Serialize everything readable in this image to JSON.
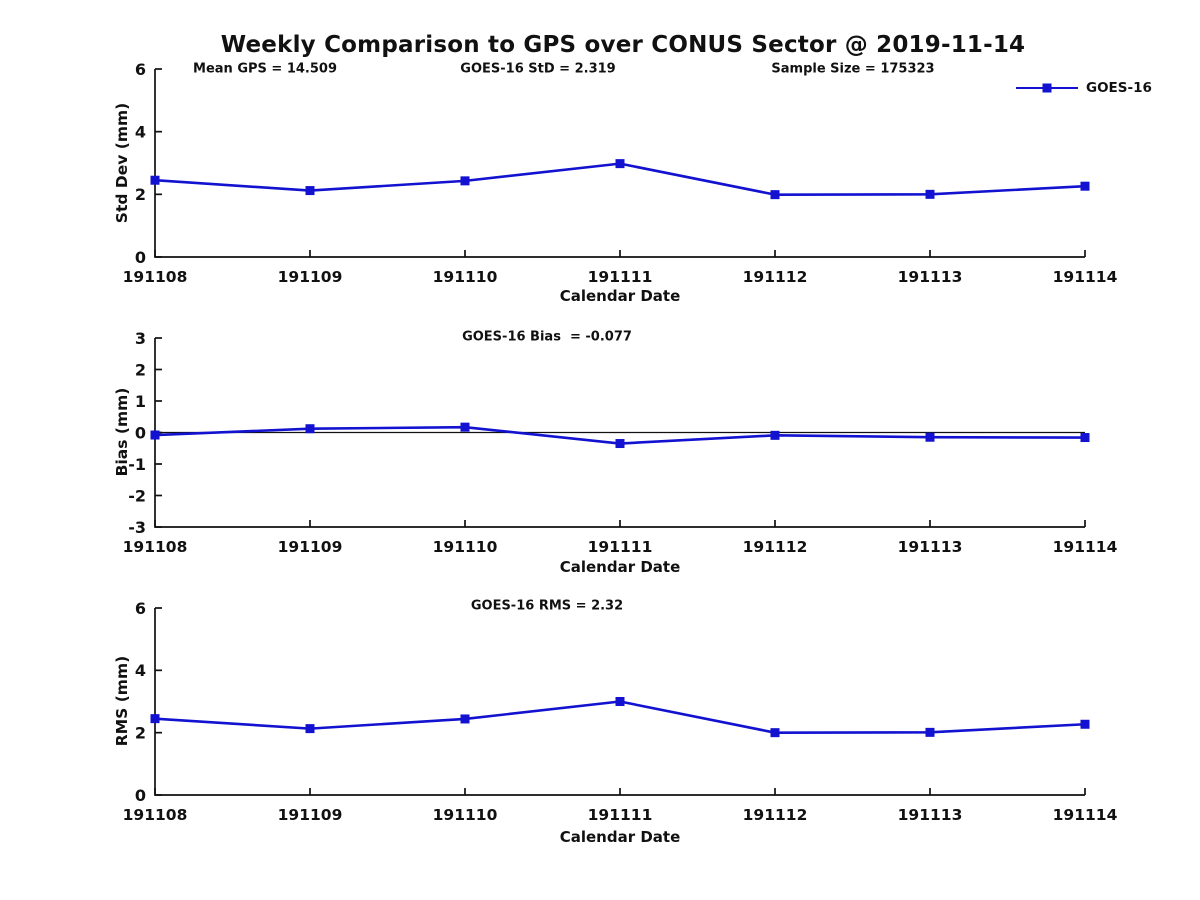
{
  "title": "Weekly Comparison to GPS over CONUS Sector @ 2019-11-14",
  "legend": {
    "label": "GOES-16",
    "color": "#1212d0",
    "position": "top-right"
  },
  "axis_color": "#111111",
  "chart_data": [
    {
      "type": "line",
      "ylabel": "Std Dev (mm)",
      "xlabel": "Calendar Date",
      "categories": [
        "191108",
        "191109",
        "191110",
        "191111",
        "191112",
        "191113",
        "191114"
      ],
      "series": [
        {
          "name": "GOES-16",
          "marker": "square",
          "values": [
            2.45,
            2.12,
            2.43,
            2.98,
            1.99,
            2.0,
            2.26
          ]
        }
      ],
      "ylim": [
        0,
        6
      ],
      "yticks": [
        0,
        2,
        4,
        6
      ],
      "grid": false,
      "zero_line": false,
      "annotations": [
        "Mean GPS = 14.509",
        "GOES-16 StD = 2.319",
        "Sample Size = 175323"
      ]
    },
    {
      "type": "line",
      "ylabel": "Bias (mm)",
      "xlabel": "Calendar Date",
      "categories": [
        "191108",
        "191109",
        "191110",
        "191111",
        "191112",
        "191113",
        "191114"
      ],
      "series": [
        {
          "name": "GOES-16",
          "marker": "square",
          "values": [
            -0.08,
            0.12,
            0.17,
            -0.35,
            -0.09,
            -0.15,
            -0.16
          ]
        }
      ],
      "ylim": [
        -3,
        3
      ],
      "yticks": [
        -3,
        -2,
        -1,
        0,
        1,
        2,
        3
      ],
      "grid": false,
      "zero_line": true,
      "annotations": [
        "GOES-16 Bias  = -0.077"
      ]
    },
    {
      "type": "line",
      "ylabel": "RMS (mm)",
      "xlabel": "Calendar Date",
      "categories": [
        "191108",
        "191109",
        "191110",
        "191111",
        "191112",
        "191113",
        "191114"
      ],
      "series": [
        {
          "name": "GOES-16",
          "marker": "square",
          "values": [
            2.45,
            2.13,
            2.44,
            3.0,
            2.0,
            2.01,
            2.27
          ]
        }
      ],
      "ylim": [
        0,
        6
      ],
      "yticks": [
        0,
        2,
        4,
        6
      ],
      "grid": false,
      "zero_line": false,
      "annotations": [
        "GOES-16 RMS = 2.32"
      ]
    }
  ]
}
